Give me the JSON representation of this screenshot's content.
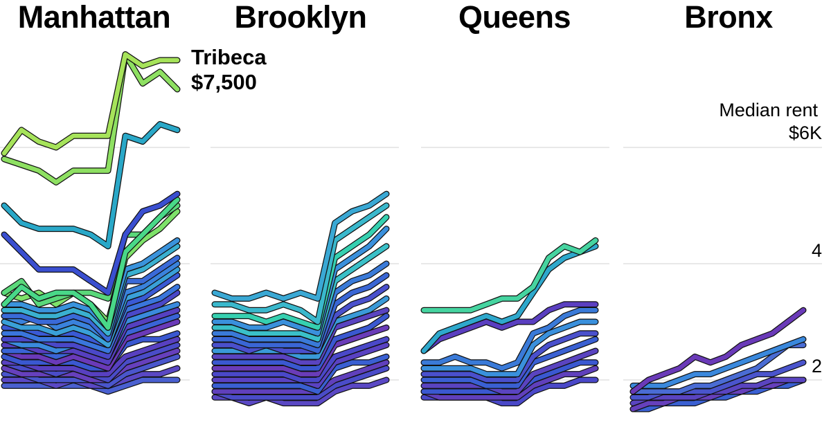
{
  "chart_data": {
    "type": "line",
    "unit": "Median rent",
    "y_ticks": [
      {
        "value": 6,
        "label": "$6K"
      },
      {
        "value": 4,
        "label": "4"
      },
      {
        "value": 2,
        "label": "2"
      }
    ],
    "y_axis_title": "Median rent",
    "ylim": [
      1.5,
      7.8
    ],
    "grid": true,
    "callout": {
      "panel": "Manhattan",
      "name": "Tribeca",
      "value": "$7,500"
    },
    "panels": [
      {
        "name": "Manhattan",
        "series": [
          {
            "values": [
              5.9,
              6.3,
              6.1,
              6.0,
              6.2,
              6.2,
              6.2,
              7.6,
              7.4,
              7.5,
              7.5
            ],
            "color": "#a6e35a",
            "label": "Tribeca"
          },
          {
            "values": [
              5.8,
              5.7,
              5.6,
              5.4,
              5.6,
              5.6,
              5.6,
              7.6,
              7.1,
              7.3,
              7.0
            ],
            "color": "#8ee062"
          },
          {
            "values": [
              5.0,
              4.7,
              4.6,
              4.6,
              4.6,
              4.5,
              4.3,
              6.2,
              6.1,
              6.4,
              6.3
            ],
            "color": "#2aa8c8"
          },
          {
            "values": [
              4.5,
              4.2,
              3.9,
              3.9,
              3.9,
              3.7,
              3.5,
              4.5,
              4.9,
              5.0,
              5.2
            ],
            "color": "#3a4fd0"
          },
          {
            "values": [
              3.3,
              3.6,
              3.4,
              3.5,
              3.5,
              3.3,
              2.9,
              4.2,
              4.5,
              4.8,
              5.1
            ],
            "color": "#49d888"
          },
          {
            "values": [
              3.5,
              3.7,
              3.3,
              3.4,
              3.5,
              3.5,
              3.4,
              4.5,
              4.5,
              4.8,
              5.0
            ],
            "color": "#5ad87a"
          },
          {
            "values": [
              3.5,
              3.4,
              3.5,
              3.3,
              3.5,
              3.3,
              3.0,
              4.1,
              4.4,
              4.6,
              4.9
            ],
            "color": "#7ee26a"
          },
          {
            "values": [
              3.3,
              3.3,
              3.2,
              3.2,
              3.3,
              3.2,
              2.9,
              3.9,
              4.0,
              4.2,
              4.4
            ],
            "color": "#3a93dc"
          },
          {
            "values": [
              3.2,
              3.2,
              3.1,
              3.1,
              3.2,
              3.1,
              2.8,
              3.8,
              3.9,
              4.1,
              4.3
            ],
            "color": "#3ab0d0"
          },
          {
            "values": [
              3.1,
              3.1,
              3.0,
              3.0,
              3.1,
              3.0,
              2.7,
              3.7,
              3.7,
              3.9,
              4.1
            ],
            "color": "#3a6ad8"
          },
          {
            "values": [
              3.1,
              3.0,
              3.1,
              2.9,
              3.0,
              2.9,
              2.7,
              3.5,
              3.6,
              3.8,
              4.0
            ],
            "color": "#3a82dc"
          },
          {
            "values": [
              3.0,
              2.9,
              2.9,
              2.8,
              2.9,
              2.8,
              2.6,
              3.4,
              3.5,
              3.7,
              3.9
            ],
            "color": "#3aa0d8"
          },
          {
            "values": [
              2.9,
              2.9,
              2.8,
              2.8,
              2.8,
              2.7,
              2.6,
              3.3,
              3.4,
              3.6,
              3.8
            ],
            "color": "#3a5ad4"
          },
          {
            "values": [
              2.8,
              2.8,
              2.7,
              2.7,
              2.7,
              2.6,
              2.5,
              3.2,
              3.3,
              3.4,
              3.6
            ],
            "color": "#3a76dc"
          },
          {
            "values": [
              2.7,
              2.7,
              2.7,
              2.6,
              2.6,
              2.5,
              2.4,
              3.1,
              3.2,
              3.3,
              3.5
            ],
            "color": "#4a48c8"
          },
          {
            "values": [
              2.7,
              2.6,
              2.6,
              2.5,
              2.6,
              2.5,
              2.4,
              3.0,
              3.1,
              3.2,
              3.3
            ],
            "color": "#3a8adc"
          },
          {
            "values": [
              2.6,
              2.6,
              2.5,
              2.5,
              2.5,
              2.4,
              2.3,
              2.9,
              3.0,
              3.1,
              3.2
            ],
            "color": "#5640c0"
          },
          {
            "values": [
              2.5,
              2.5,
              2.5,
              2.4,
              2.5,
              2.4,
              2.3,
              2.8,
              2.9,
              3.0,
              3.1
            ],
            "color": "#3a64d6"
          },
          {
            "values": [
              2.5,
              2.4,
              2.4,
              2.3,
              2.4,
              2.3,
              2.2,
              2.7,
              2.8,
              2.9,
              3.0
            ],
            "color": "#6a3ab8"
          },
          {
            "values": [
              2.4,
              2.3,
              2.3,
              2.3,
              2.3,
              2.2,
              2.2,
              2.6,
              2.7,
              2.7,
              2.8
            ],
            "color": "#3a58d0"
          },
          {
            "values": [
              2.3,
              2.3,
              2.2,
              2.2,
              2.2,
              2.1,
              2.1,
              2.4,
              2.5,
              2.6,
              2.7
            ],
            "color": "#5840c0"
          },
          {
            "values": [
              2.3,
              2.2,
              2.2,
              2.1,
              2.2,
              2.1,
              2.0,
              2.3,
              2.4,
              2.5,
              2.6
            ],
            "color": "#4a4cc8"
          },
          {
            "values": [
              2.2,
              2.1,
              2.1,
              2.1,
              2.1,
              2.0,
              2.0,
              2.2,
              2.3,
              2.4,
              2.5
            ],
            "color": "#6640bc"
          },
          {
            "values": [
              2.1,
              2.1,
              2.0,
              2.0,
              2.0,
              2.0,
              1.9,
              2.1,
              2.2,
              2.3,
              2.4
            ],
            "color": "#4a56cc"
          },
          {
            "values": [
              2.0,
              2.0,
              2.0,
              1.9,
              2.0,
              1.9,
              1.9,
              2.0,
              2.1,
              2.1,
              2.2
            ],
            "color": "#5a48c4"
          },
          {
            "values": [
              1.9,
              1.9,
              1.9,
              1.9,
              1.9,
              1.9,
              1.8,
              1.9,
              2.0,
              2.0,
              2.0
            ],
            "color": "#4a60d0"
          }
        ]
      },
      {
        "name": "Brooklyn",
        "series": [
          {
            "values": [
              3.5,
              3.4,
              3.4,
              3.5,
              3.4,
              3.5,
              3.4,
              4.7,
              4.9,
              5.0,
              5.2
            ],
            "color": "#3aa8d4"
          },
          {
            "values": [
              3.3,
              3.3,
              3.2,
              3.2,
              3.3,
              3.2,
              3.0,
              4.4,
              4.6,
              4.8,
              5.0
            ],
            "color": "#3ab8cc"
          },
          {
            "values": [
              3.1,
              3.1,
              3.1,
              3.0,
              3.1,
              3.0,
              2.9,
              4.1,
              4.3,
              4.5,
              4.8
            ],
            "color": "#36d0b0"
          },
          {
            "values": [
              3.0,
              3.0,
              2.9,
              2.9,
              3.0,
              2.9,
              2.8,
              3.9,
              4.1,
              4.3,
              4.6
            ],
            "color": "#3a90dc"
          },
          {
            "values": [
              2.9,
              2.9,
              2.8,
              2.8,
              2.8,
              2.8,
              2.7,
              3.7,
              3.9,
              4.1,
              4.3
            ],
            "color": "#3ac0c8"
          },
          {
            "values": [
              2.8,
              2.8,
              2.7,
              2.7,
              2.7,
              2.7,
              2.6,
              3.5,
              3.7,
              3.8,
              4.0
            ],
            "color": "#3a7ad8"
          },
          {
            "values": [
              2.7,
              2.7,
              2.6,
              2.6,
              2.6,
              2.6,
              2.5,
              3.3,
              3.5,
              3.6,
              3.8
            ],
            "color": "#3a66d4"
          },
          {
            "values": [
              2.6,
              2.6,
              2.5,
              2.6,
              2.5,
              2.5,
              2.5,
              3.1,
              3.3,
              3.4,
              3.6
            ],
            "color": "#4a50cc"
          },
          {
            "values": [
              2.5,
              2.5,
              2.5,
              2.5,
              2.5,
              2.4,
              2.4,
              3.0,
              3.1,
              3.2,
              3.4
            ],
            "color": "#3a9ad8"
          },
          {
            "values": [
              2.4,
              2.4,
              2.4,
              2.4,
              2.4,
              2.3,
              2.3,
              2.9,
              3.0,
              3.1,
              3.2
            ],
            "color": "#5a44c0"
          },
          {
            "values": [
              2.3,
              2.3,
              2.3,
              2.3,
              2.3,
              2.2,
              2.2,
              2.7,
              2.8,
              2.9,
              3.1
            ],
            "color": "#3a58d0"
          },
          {
            "values": [
              2.2,
              2.2,
              2.2,
              2.2,
              2.2,
              2.1,
              2.1,
              2.6,
              2.7,
              2.8,
              2.9
            ],
            "color": "#6a3cb8"
          },
          {
            "values": [
              2.1,
              2.1,
              2.1,
              2.1,
              2.1,
              2.0,
              2.0,
              2.4,
              2.5,
              2.6,
              2.7
            ],
            "color": "#4a48c8"
          },
          {
            "values": [
              2.0,
              2.0,
              2.0,
              2.0,
              2.0,
              2.0,
              1.9,
              2.3,
              2.4,
              2.5,
              2.6
            ],
            "color": "#5a42c2"
          },
          {
            "values": [
              1.9,
              1.9,
              1.9,
              1.9,
              1.9,
              1.9,
              1.8,
              2.2,
              2.3,
              2.3,
              2.4
            ],
            "color": "#3a60d2"
          },
          {
            "values": [
              1.8,
              1.8,
              1.8,
              1.8,
              1.8,
              1.8,
              1.8,
              2.0,
              2.1,
              2.2,
              2.3
            ],
            "color": "#6040bc"
          },
          {
            "values": [
              1.8,
              1.7,
              1.7,
              1.7,
              1.7,
              1.7,
              1.7,
              1.9,
              2.0,
              2.1,
              2.2
            ],
            "color": "#4a4cc8"
          },
          {
            "values": [
              1.7,
              1.7,
              1.6,
              1.7,
              1.6,
              1.6,
              1.6,
              1.8,
              1.9,
              1.9,
              2.0
            ],
            "color": "#5a48c4"
          }
        ]
      },
      {
        "name": "Queens",
        "series": [
          {
            "values": [
              3.2,
              3.2,
              3.2,
              3.2,
              3.3,
              3.4,
              3.4,
              3.6,
              4.1,
              4.3,
              4.2,
              4.4
            ],
            "color": "#46d4a0"
          },
          {
            "values": [
              2.5,
              2.8,
              2.9,
              3.0,
              3.1,
              3.0,
              3.1,
              3.5,
              3.9,
              4.1,
              4.2,
              4.3
            ],
            "color": "#2ea8cc"
          },
          {
            "values": [
              2.5,
              2.7,
              2.8,
              2.9,
              3.0,
              2.9,
              3.0,
              3.0,
              3.2,
              3.3,
              3.3,
              3.3
            ],
            "color": "#5a3fc0"
          },
          {
            "values": [
              2.3,
              2.3,
              2.4,
              2.3,
              2.3,
              2.2,
              2.3,
              2.8,
              2.9,
              3.1,
              3.2,
              3.2
            ],
            "color": "#3a7ad8"
          },
          {
            "values": [
              2.2,
              2.2,
              2.2,
              2.2,
              2.1,
              2.1,
              2.1,
              2.6,
              2.8,
              2.9,
              3.0,
              3.0
            ],
            "color": "#3a90dc"
          },
          {
            "values": [
              2.1,
              2.1,
              2.1,
              2.1,
              2.0,
              2.0,
              2.0,
              2.4,
              2.6,
              2.7,
              2.8,
              2.8
            ],
            "color": "#4a50cc"
          },
          {
            "values": [
              2.0,
              2.0,
              2.0,
              2.0,
              1.9,
              1.9,
              1.9,
              2.3,
              2.4,
              2.5,
              2.6,
              2.7
            ],
            "color": "#3a60d2"
          },
          {
            "values": [
              1.9,
              1.9,
              1.9,
              1.9,
              1.9,
              1.8,
              1.8,
              2.1,
              2.2,
              2.3,
              2.4,
              2.5
            ],
            "color": "#5a44c0"
          },
          {
            "values": [
              1.8,
              1.8,
              1.8,
              1.8,
              1.8,
              1.8,
              1.8,
              2.0,
              2.1,
              2.2,
              2.3,
              2.3
            ],
            "color": "#3a58d0"
          },
          {
            "values": [
              1.8,
              1.7,
              1.7,
              1.7,
              1.7,
              1.7,
              1.7,
              1.9,
              2.0,
              2.1,
              2.1,
              2.2
            ],
            "color": "#6040bc"
          },
          {
            "values": [
              1.7,
              1.7,
              1.7,
              1.7,
              1.7,
              1.6,
              1.6,
              1.8,
              1.9,
              1.9,
              2.0,
              2.0
            ],
            "color": "#4a48c8"
          }
        ]
      },
      {
        "name": "Bronx",
        "series": [
          {
            "values": [
              1.8,
              2.0,
              2.1,
              2.2,
              2.4,
              2.3,
              2.4,
              2.6,
              2.7,
              2.8,
              3.0,
              3.2
            ],
            "color": "#6a3ab8"
          },
          {
            "values": [
              1.9,
              1.9,
              1.9,
              2.0,
              2.1,
              2.1,
              2.2,
              2.3,
              2.4,
              2.5,
              2.6,
              2.7
            ],
            "color": "#3a88dc"
          },
          {
            "values": [
              1.8,
              1.8,
              1.8,
              1.8,
              1.9,
              1.9,
              2.0,
              2.1,
              2.2,
              2.4,
              2.6,
              2.6
            ],
            "color": "#4a6cd4"
          },
          {
            "values": [
              1.7,
              1.7,
              1.8,
              1.8,
              1.8,
              1.8,
              1.9,
              2.0,
              2.1,
              2.1,
              2.2,
              2.3
            ],
            "color": "#4a54cc"
          },
          {
            "values": [
              1.6,
              1.7,
              1.7,
              1.7,
              1.7,
              1.8,
              1.8,
              1.9,
              1.9,
              2.0,
              2.0,
              2.0
            ],
            "color": "#5a44c0"
          },
          {
            "values": [
              1.5,
              1.6,
              1.6,
              1.7,
              1.7,
              1.7,
              1.8,
              1.8,
              1.9,
              1.9,
              2.0,
              2.0
            ],
            "color": "#6640bc"
          },
          {
            "values": [
              1.5,
              1.5,
              1.6,
              1.6,
              1.6,
              1.7,
              1.7,
              1.8,
              1.8,
              1.9,
              1.9,
              2.0
            ],
            "color": "#3a60d2"
          }
        ]
      }
    ]
  }
}
